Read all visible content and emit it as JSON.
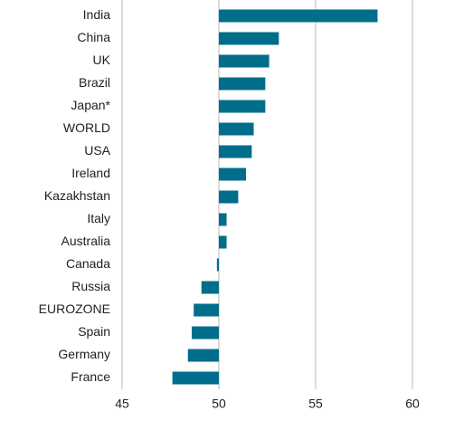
{
  "chart_data": {
    "type": "hbar",
    "categories": [
      "India",
      "China",
      "UK",
      "Brazil",
      "Japan*",
      "WORLD",
      "USA",
      "Ireland",
      "Kazakhstan",
      "Italy",
      "Australia",
      "Canada",
      "Russia",
      "EUROZONE",
      "Spain",
      "Germany",
      "France"
    ],
    "values": [
      58.2,
      53.1,
      52.6,
      52.4,
      52.4,
      51.8,
      51.7,
      51.4,
      51.0,
      50.4,
      50.4,
      49.9,
      49.1,
      48.7,
      48.6,
      48.4,
      47.6
    ],
    "baseline": 50,
    "color": "#006e8a",
    "xlim": [
      45,
      60
    ],
    "xticks": [
      45,
      50,
      55,
      60
    ],
    "grid": true
  }
}
